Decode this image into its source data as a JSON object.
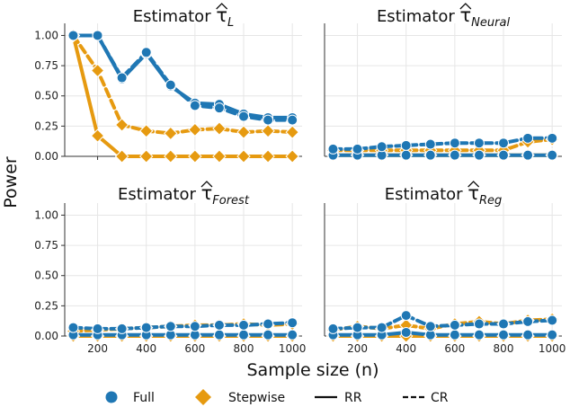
{
  "chart_data": {
    "type": "line",
    "ylabel": "Power",
    "xlabel": "Sample size (n)",
    "x": [
      100,
      200,
      300,
      400,
      500,
      600,
      700,
      800,
      900,
      1000
    ],
    "x_ticks": [
      "200",
      "400",
      "600",
      "800",
      "1000"
    ],
    "xlim": [
      65,
      1040
    ],
    "ylim": [
      0,
      1.1
    ],
    "y_ticks": [
      "0.00",
      "0.25",
      "0.50",
      "0.75",
      "1.00"
    ],
    "grid": true,
    "colors": {
      "Full": "#1f77b4",
      "Stepwise": "#e69a10"
    },
    "panels": [
      {
        "title_prefix": "Estimator ",
        "title_symbol": "τ",
        "title_subscript": "L",
        "show_y_ticks": true,
        "show_x_ticks": false,
        "series": [
          {
            "name": "Full RR",
            "method": "Full",
            "design": "RR",
            "values": [
              1.0,
              1.0,
              0.64,
              0.85,
              0.58,
              0.44,
              0.43,
              0.35,
              0.32,
              0.32
            ]
          },
          {
            "name": "Full CR",
            "method": "Full",
            "design": "CR",
            "values": [
              1.0,
              1.0,
              0.65,
              0.86,
              0.59,
              0.42,
              0.4,
              0.33,
              0.3,
              0.3
            ]
          },
          {
            "name": "Stepwise RR",
            "method": "Stepwise",
            "design": "RR",
            "values": [
              1.0,
              0.17,
              0.0,
              0.0,
              0.0,
              0.0,
              0.0,
              0.0,
              0.0,
              0.0
            ]
          },
          {
            "name": "Stepwise CR",
            "method": "Stepwise",
            "design": "CR",
            "values": [
              1.0,
              0.71,
              0.26,
              0.21,
              0.19,
              0.22,
              0.23,
              0.2,
              0.21,
              0.2
            ]
          }
        ]
      },
      {
        "title_prefix": "Estimator ",
        "title_symbol": "τ",
        "title_subscript": "Neural",
        "show_y_ticks": false,
        "show_x_ticks": false,
        "series": [
          {
            "name": "Full RR",
            "method": "Full",
            "design": "RR",
            "values": [
              0.01,
              0.01,
              0.01,
              0.01,
              0.01,
              0.01,
              0.01,
              0.01,
              0.01,
              0.01
            ]
          },
          {
            "name": "Full CR",
            "method": "Full",
            "design": "CR",
            "values": [
              0.06,
              0.06,
              0.08,
              0.09,
              0.1,
              0.11,
              0.11,
              0.11,
              0.15,
              0.15
            ]
          },
          {
            "name": "Stepwise RR",
            "method": "Stepwise",
            "design": "RR",
            "values": [
              0.01,
              0.01,
              0.01,
              0.01,
              0.01,
              0.01,
              0.01,
              0.01,
              0.01,
              0.01
            ]
          },
          {
            "name": "Stepwise CR",
            "method": "Stepwise",
            "design": "CR",
            "values": [
              0.05,
              0.05,
              0.05,
              0.05,
              0.05,
              0.05,
              0.05,
              0.05,
              0.12,
              0.14
            ]
          }
        ]
      },
      {
        "title_prefix": "Estimator ",
        "title_symbol": "τ",
        "title_subscript": "Forest",
        "show_y_ticks": true,
        "show_x_ticks": true,
        "series": [
          {
            "name": "Full RR",
            "method": "Full",
            "design": "RR",
            "values": [
              0.01,
              0.01,
              0.01,
              0.01,
              0.01,
              0.01,
              0.01,
              0.01,
              0.01,
              0.01
            ]
          },
          {
            "name": "Full CR",
            "method": "Full",
            "design": "CR",
            "values": [
              0.07,
              0.06,
              0.06,
              0.07,
              0.08,
              0.08,
              0.09,
              0.09,
              0.1,
              0.11
            ]
          },
          {
            "name": "Stepwise RR",
            "method": "Stepwise",
            "design": "RR",
            "values": [
              0.0,
              0.0,
              0.0,
              0.0,
              0.0,
              0.0,
              0.0,
              0.0,
              0.0,
              0.0
            ]
          },
          {
            "name": "Stepwise CR",
            "method": "Stepwise",
            "design": "CR",
            "values": [
              0.04,
              0.05,
              0.06,
              0.07,
              0.08,
              0.09,
              0.09,
              0.1,
              0.09,
              0.1
            ]
          }
        ]
      },
      {
        "title_prefix": "Estimator ",
        "title_symbol": "τ",
        "title_subscript": "Reg",
        "show_y_ticks": false,
        "show_x_ticks": true,
        "series": [
          {
            "name": "Full RR",
            "method": "Full",
            "design": "RR",
            "values": [
              0.01,
              0.01,
              0.01,
              0.03,
              0.01,
              0.01,
              0.01,
              0.01,
              0.01,
              0.01
            ]
          },
          {
            "name": "Full CR",
            "method": "Full",
            "design": "CR",
            "values": [
              0.06,
              0.07,
              0.07,
              0.17,
              0.08,
              0.09,
              0.1,
              0.1,
              0.12,
              0.13
            ]
          },
          {
            "name": "Stepwise RR",
            "method": "Stepwise",
            "design": "RR",
            "values": [
              0.0,
              0.0,
              0.0,
              0.0,
              0.0,
              0.0,
              0.0,
              0.0,
              0.0,
              0.0
            ]
          },
          {
            "name": "Stepwise CR",
            "method": "Stepwise",
            "design": "CR",
            "values": [
              0.05,
              0.08,
              0.06,
              0.09,
              0.06,
              0.1,
              0.12,
              0.1,
              0.13,
              0.14
            ]
          }
        ]
      }
    ],
    "legend": [
      {
        "label": "Full",
        "kind": "circle",
        "key": "Full"
      },
      {
        "label": "Stepwise",
        "kind": "diamond",
        "key": "Stepwise"
      },
      {
        "label": "RR",
        "kind": "solid"
      },
      {
        "label": "CR",
        "kind": "dashed"
      }
    ]
  }
}
